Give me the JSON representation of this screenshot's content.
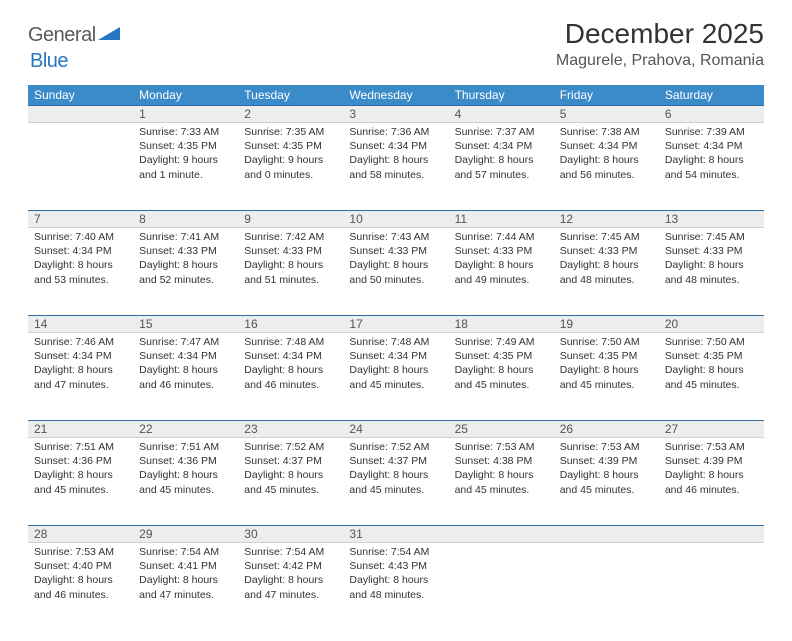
{
  "logo": {
    "part1": "General",
    "part2": "Blue"
  },
  "title": "December 2025",
  "location": "Magurele, Prahova, Romania",
  "colors": {
    "header_bg": "#3b8bc9",
    "header_text": "#ffffff",
    "daynum_bg": "#eceded",
    "row_border": "#2e6ca3",
    "text": "#333333",
    "logo_gray": "#5a5a5a",
    "logo_blue": "#2679c0",
    "page_bg": "#ffffff"
  },
  "weekdays": [
    "Sunday",
    "Monday",
    "Tuesday",
    "Wednesday",
    "Thursday",
    "Friday",
    "Saturday"
  ],
  "weeks": [
    [
      null,
      {
        "n": "1",
        "sr": "7:33 AM",
        "ss": "4:35 PM",
        "dl": "9 hours and 1 minute."
      },
      {
        "n": "2",
        "sr": "7:35 AM",
        "ss": "4:35 PM",
        "dl": "9 hours and 0 minutes."
      },
      {
        "n": "3",
        "sr": "7:36 AM",
        "ss": "4:34 PM",
        "dl": "8 hours and 58 minutes."
      },
      {
        "n": "4",
        "sr": "7:37 AM",
        "ss": "4:34 PM",
        "dl": "8 hours and 57 minutes."
      },
      {
        "n": "5",
        "sr": "7:38 AM",
        "ss": "4:34 PM",
        "dl": "8 hours and 56 minutes."
      },
      {
        "n": "6",
        "sr": "7:39 AM",
        "ss": "4:34 PM",
        "dl": "8 hours and 54 minutes."
      }
    ],
    [
      {
        "n": "7",
        "sr": "7:40 AM",
        "ss": "4:34 PM",
        "dl": "8 hours and 53 minutes."
      },
      {
        "n": "8",
        "sr": "7:41 AM",
        "ss": "4:33 PM",
        "dl": "8 hours and 52 minutes."
      },
      {
        "n": "9",
        "sr": "7:42 AM",
        "ss": "4:33 PM",
        "dl": "8 hours and 51 minutes."
      },
      {
        "n": "10",
        "sr": "7:43 AM",
        "ss": "4:33 PM",
        "dl": "8 hours and 50 minutes."
      },
      {
        "n": "11",
        "sr": "7:44 AM",
        "ss": "4:33 PM",
        "dl": "8 hours and 49 minutes."
      },
      {
        "n": "12",
        "sr": "7:45 AM",
        "ss": "4:33 PM",
        "dl": "8 hours and 48 minutes."
      },
      {
        "n": "13",
        "sr": "7:45 AM",
        "ss": "4:33 PM",
        "dl": "8 hours and 48 minutes."
      }
    ],
    [
      {
        "n": "14",
        "sr": "7:46 AM",
        "ss": "4:34 PM",
        "dl": "8 hours and 47 minutes."
      },
      {
        "n": "15",
        "sr": "7:47 AM",
        "ss": "4:34 PM",
        "dl": "8 hours and 46 minutes."
      },
      {
        "n": "16",
        "sr": "7:48 AM",
        "ss": "4:34 PM",
        "dl": "8 hours and 46 minutes."
      },
      {
        "n": "17",
        "sr": "7:48 AM",
        "ss": "4:34 PM",
        "dl": "8 hours and 45 minutes."
      },
      {
        "n": "18",
        "sr": "7:49 AM",
        "ss": "4:35 PM",
        "dl": "8 hours and 45 minutes."
      },
      {
        "n": "19",
        "sr": "7:50 AM",
        "ss": "4:35 PM",
        "dl": "8 hours and 45 minutes."
      },
      {
        "n": "20",
        "sr": "7:50 AM",
        "ss": "4:35 PM",
        "dl": "8 hours and 45 minutes."
      }
    ],
    [
      {
        "n": "21",
        "sr": "7:51 AM",
        "ss": "4:36 PM",
        "dl": "8 hours and 45 minutes."
      },
      {
        "n": "22",
        "sr": "7:51 AM",
        "ss": "4:36 PM",
        "dl": "8 hours and 45 minutes."
      },
      {
        "n": "23",
        "sr": "7:52 AM",
        "ss": "4:37 PM",
        "dl": "8 hours and 45 minutes."
      },
      {
        "n": "24",
        "sr": "7:52 AM",
        "ss": "4:37 PM",
        "dl": "8 hours and 45 minutes."
      },
      {
        "n": "25",
        "sr": "7:53 AM",
        "ss": "4:38 PM",
        "dl": "8 hours and 45 minutes."
      },
      {
        "n": "26",
        "sr": "7:53 AM",
        "ss": "4:39 PM",
        "dl": "8 hours and 45 minutes."
      },
      {
        "n": "27",
        "sr": "7:53 AM",
        "ss": "4:39 PM",
        "dl": "8 hours and 46 minutes."
      }
    ],
    [
      {
        "n": "28",
        "sr": "7:53 AM",
        "ss": "4:40 PM",
        "dl": "8 hours and 46 minutes."
      },
      {
        "n": "29",
        "sr": "7:54 AM",
        "ss": "4:41 PM",
        "dl": "8 hours and 47 minutes."
      },
      {
        "n": "30",
        "sr": "7:54 AM",
        "ss": "4:42 PM",
        "dl": "8 hours and 47 minutes."
      },
      {
        "n": "31",
        "sr": "7:54 AM",
        "ss": "4:43 PM",
        "dl": "8 hours and 48 minutes."
      },
      null,
      null,
      null
    ]
  ],
  "labels": {
    "sunrise": "Sunrise:",
    "sunset": "Sunset:",
    "daylight": "Daylight:"
  }
}
